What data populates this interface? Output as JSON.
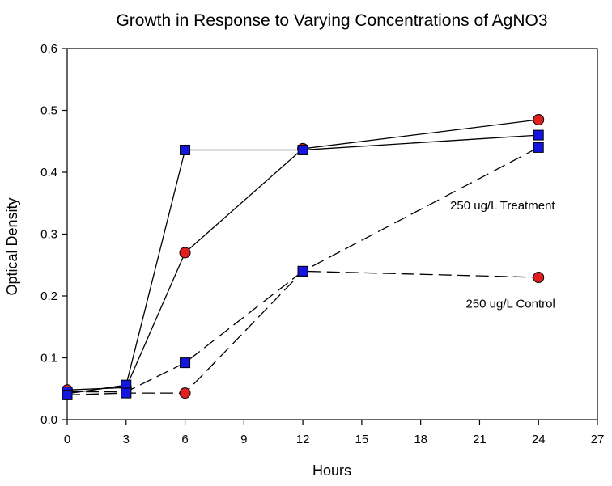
{
  "chart_data": {
    "type": "line",
    "title": "Growth in Response to Varying Concentrations of AgNO3",
    "xlabel": "Hours",
    "ylabel": "Optical Density",
    "xlim": [
      0,
      27
    ],
    "ylim": [
      0,
      0.6
    ],
    "xticks": [
      0,
      3,
      6,
      9,
      12,
      15,
      18,
      21,
      24,
      27
    ],
    "yticks": [
      0.0,
      0.1,
      0.2,
      0.3,
      0.4,
      0.5,
      0.6
    ],
    "grid": false,
    "legend": "none",
    "series": [
      {
        "x": [
          0,
          3,
          6,
          12,
          24
        ],
        "values": [
          0.048,
          0.052,
          0.27,
          0.438,
          0.485
        ],
        "marker": "circle",
        "line": "solid",
        "color": "#e02020"
      },
      {
        "x": [
          0,
          3,
          6,
          12,
          24
        ],
        "values": [
          0.042,
          0.056,
          0.436,
          0.436,
          0.46
        ],
        "marker": "square",
        "line": "solid",
        "color": "#1515e0"
      },
      {
        "x": [
          0,
          3,
          6,
          12,
          24
        ],
        "values": [
          0.045,
          0.045,
          0.092,
          0.24,
          0.23
        ],
        "marker": [
          "square",
          "square",
          "square",
          "square",
          "circle"
        ],
        "line": "dashed",
        "color": "#1515e0"
      },
      {
        "x": [
          0,
          3,
          6,
          12,
          24
        ],
        "values": [
          0.04,
          0.043,
          0.043,
          0.24,
          0.44
        ],
        "marker": [
          "square",
          "square",
          "circle",
          "square",
          "square"
        ],
        "line": "dashed",
        "color": "#e02020"
      }
    ],
    "annotations": [
      {
        "text": "250 ug/L Treatment",
        "x": 19.5,
        "y": 0.34
      },
      {
        "text": "250 ug/L Control",
        "x": 20.3,
        "y": 0.181
      }
    ]
  }
}
